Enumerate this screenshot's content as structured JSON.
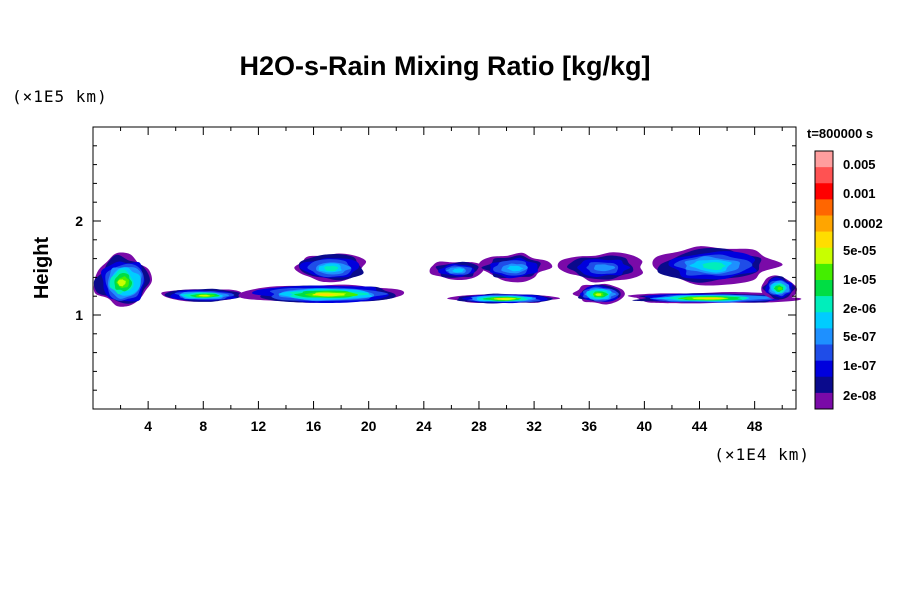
{
  "chart_data": {
    "type": "heatmap",
    "title": "H2O-s-Rain Mixing Ratio [kg/kg]",
    "ylabel": "Height",
    "x_unit": "(×1E4 km)",
    "y_unit": "(×1E5 km)",
    "time_label": "t=800000 s",
    "xlim": [
      0,
      51
    ],
    "ylim": [
      0,
      3
    ],
    "x_ticks": [
      4,
      8,
      12,
      16,
      20,
      24,
      28,
      32,
      36,
      40,
      44,
      48
    ],
    "y_ticks": [
      1,
      2
    ],
    "x_tick_labels": [
      "4",
      "8",
      "12",
      "16",
      "20",
      "24",
      "28",
      "32",
      "36",
      "40",
      "44",
      "48"
    ],
    "y_tick_labels": [
      "1",
      "2"
    ],
    "colorbar": {
      "labels": [
        "0.005",
        "0.001",
        "0.0002",
        "5e-05",
        "1e-05",
        "2e-06",
        "5e-07",
        "1e-07",
        "2e-08"
      ],
      "colors": [
        "#ff9e9e",
        "#ff5252",
        "#ff0000",
        "#ff6600",
        "#ffa500",
        "#ffdd00",
        "#c8ff00",
        "#44ee00",
        "#00dd44",
        "#00eebb",
        "#00ccff",
        "#1e90ff",
        "#1f4de8",
        "#0000dd",
        "#0a0a8c",
        "#7a0aa8"
      ]
    },
    "regions": [
      {
        "name": "cloud-1",
        "x": [
          0.1,
          4.3
        ],
        "y": [
          1.08,
          1.65
        ],
        "level": 9
      },
      {
        "name": "cloud-2",
        "x": [
          5.0,
          11.0
        ],
        "y": [
          1.14,
          1.28
        ],
        "level": 9
      },
      {
        "name": "cloud-3",
        "x": [
          11.0,
          23.0
        ],
        "y": [
          1.12,
          1.33
        ],
        "level": 10
      },
      {
        "name": "cloud-4",
        "x": [
          14.5,
          20.0
        ],
        "y": [
          1.35,
          1.66
        ],
        "level": 6
      },
      {
        "name": "cloud-5",
        "x": [
          24.5,
          28.3
        ],
        "y": [
          1.38,
          1.58
        ],
        "level": 5
      },
      {
        "name": "cloud-6",
        "x": [
          26.0,
          33.5
        ],
        "y": [
          1.12,
          1.23
        ],
        "level": 10
      },
      {
        "name": "cloud-7",
        "x": [
          28.0,
          33.0
        ],
        "y": [
          1.36,
          1.65
        ],
        "level": 5
      },
      {
        "name": "cloud-8",
        "x": [
          34.0,
          40.0
        ],
        "y": [
          1.36,
          1.66
        ],
        "level": 4
      },
      {
        "name": "cloud-9",
        "x": [
          35.0,
          38.5
        ],
        "y": [
          1.12,
          1.33
        ],
        "level": 9
      },
      {
        "name": "cloud-10",
        "x": [
          38.5,
          51.0
        ],
        "y": [
          1.12,
          1.24
        ],
        "level": 10
      },
      {
        "name": "cloud-11",
        "x": [
          40.5,
          49.5
        ],
        "y": [
          1.33,
          1.74
        ],
        "level": 6
      },
      {
        "name": "cloud-12",
        "x": [
          48.5,
          51.0
        ],
        "y": [
          1.16,
          1.42
        ],
        "level": 8
      }
    ]
  }
}
